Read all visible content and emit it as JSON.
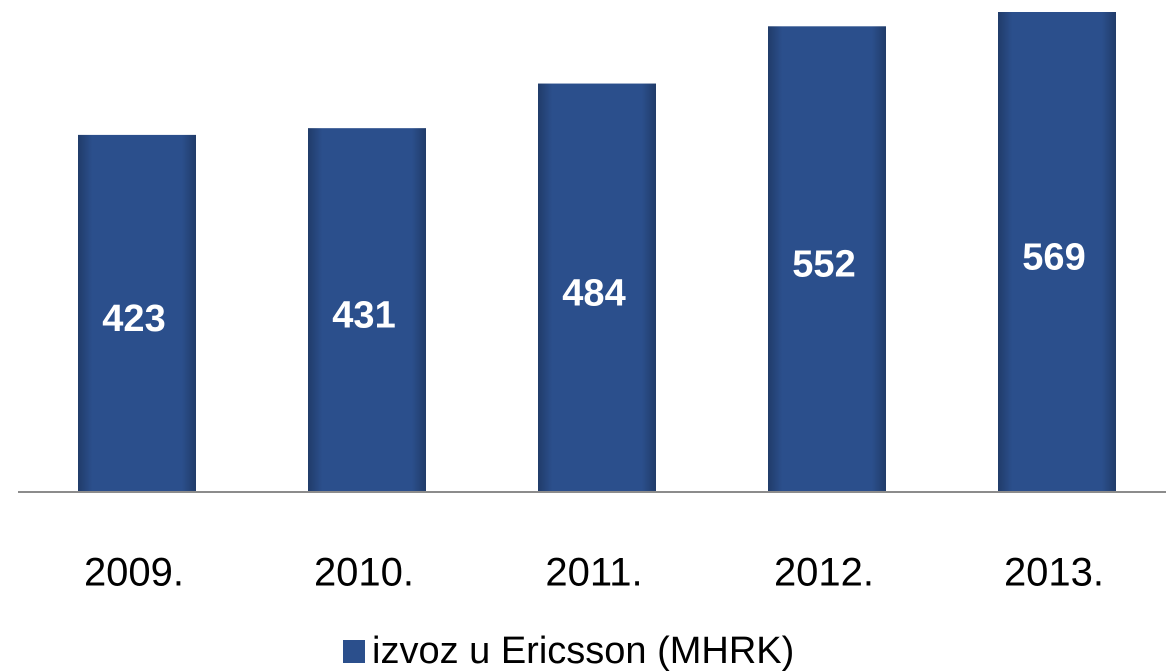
{
  "chart_data": {
    "type": "bar",
    "categories": [
      "2009.",
      "2010.",
      "2011.",
      "2012.",
      "2013."
    ],
    "series": [
      {
        "name": "izvoz u Ericsson (MHRK)",
        "color": "#2b4f8c",
        "values": [
          423,
          431,
          484,
          552,
          569
        ]
      }
    ]
  }
}
